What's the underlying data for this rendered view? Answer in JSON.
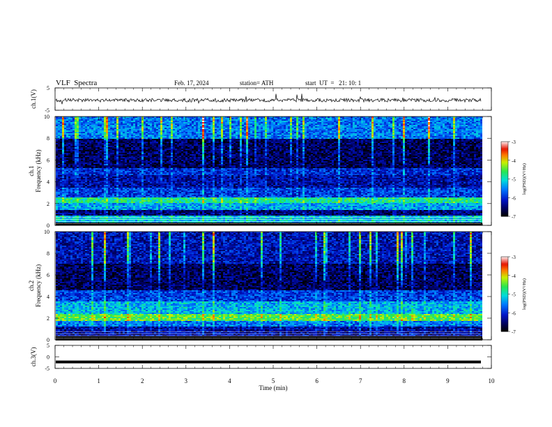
{
  "header": {
    "title": "VLF  Spectra",
    "date": "Feb. 17, 2024",
    "station": "station= ATH",
    "start": "start  UT  =   21: 10: 1"
  },
  "chart_data": [
    {
      "type": "line",
      "name": "ch.1 waveform",
      "ylabel": "ch.1(V)",
      "ylim": [
        -5,
        5
      ],
      "yticks": [
        "5",
        "-5"
      ],
      "xlim": [
        0,
        10
      ],
      "trace": "noisy waveform around -0.5 V, spikes to about +2 V and -2.5 V"
    },
    {
      "type": "heatmap",
      "name": "ch.1 spectrogram",
      "ylabel": "ch.1\nFrequency  (kHz)",
      "ylim": [
        0,
        10
      ],
      "yticks": [
        "0",
        "2",
        "4",
        "6",
        "8",
        "10"
      ],
      "xlim": [
        0,
        10
      ],
      "colorbar": {
        "label": "log(PSD)(V²/Hz)",
        "ticks": [
          "-3",
          "-4",
          "-5",
          "-6",
          "-7"
        ],
        "range": [
          -7,
          -3
        ]
      },
      "bands": [
        {
          "f_range": [
            0.0,
            0.3
          ],
          "level": -7.0
        },
        {
          "f_range": [
            0.3,
            0.9
          ],
          "level": -5.2
        },
        {
          "f_range": [
            0.9,
            1.4
          ],
          "level": -6.5
        },
        {
          "f_range": [
            1.4,
            2.0
          ],
          "level": -5.4
        },
        {
          "f_range": [
            2.0,
            2.6
          ],
          "level": -4.8
        },
        {
          "f_range": [
            2.6,
            3.4
          ],
          "level": -5.9
        },
        {
          "f_range": [
            3.4,
            4.6
          ],
          "level": -6.3
        },
        {
          "f_range": [
            4.6,
            5.2
          ],
          "level": -6.0
        },
        {
          "f_range": [
            5.2,
            8.0
          ],
          "level": -6.6
        },
        {
          "f_range": [
            8.0,
            10.0
          ],
          "level": -5.6
        }
      ]
    },
    {
      "type": "heatmap",
      "name": "ch.2 spectrogram",
      "ylabel": "ch.2\nFrequency  (kHz)",
      "ylim": [
        0,
        10
      ],
      "yticks": [
        "0",
        "2",
        "4",
        "6",
        "8",
        "10"
      ],
      "xlim": [
        0,
        10
      ],
      "colorbar": {
        "label": "log(PSD)(V²/Hz)",
        "ticks": [
          "-3",
          "-4",
          "-5",
          "-6",
          "-7"
        ],
        "range": [
          -7,
          -3
        ]
      },
      "bands": [
        {
          "f_range": [
            0.0,
            0.3
          ],
          "level": -7.0
        },
        {
          "f_range": [
            0.3,
            1.2
          ],
          "level": -6.3
        },
        {
          "f_range": [
            1.2,
            1.8
          ],
          "level": -5.6
        },
        {
          "f_range": [
            1.8,
            2.4
          ],
          "level": -4.5
        },
        {
          "f_range": [
            2.4,
            3.6
          ],
          "level": -5.3
        },
        {
          "f_range": [
            3.6,
            4.6
          ],
          "level": -5.9
        },
        {
          "f_range": [
            4.6,
            7.0
          ],
          "level": -6.6
        },
        {
          "f_range": [
            7.0,
            10.0
          ],
          "level": -6.2
        }
      ]
    },
    {
      "type": "line",
      "name": "ch.3 waveform",
      "ylabel": "ch.3(V)",
      "ylim": [
        -5,
        5
      ],
      "yticks": [
        "5",
        "0",
        "-5"
      ],
      "xlim": [
        0,
        10
      ],
      "xlabel": "Time  (min)",
      "xticks": [
        "0",
        "1",
        "2",
        "3",
        "4",
        "5",
        "6",
        "7",
        "8",
        "9",
        "10"
      ],
      "trace": "flat at about -2.2 V"
    }
  ]
}
